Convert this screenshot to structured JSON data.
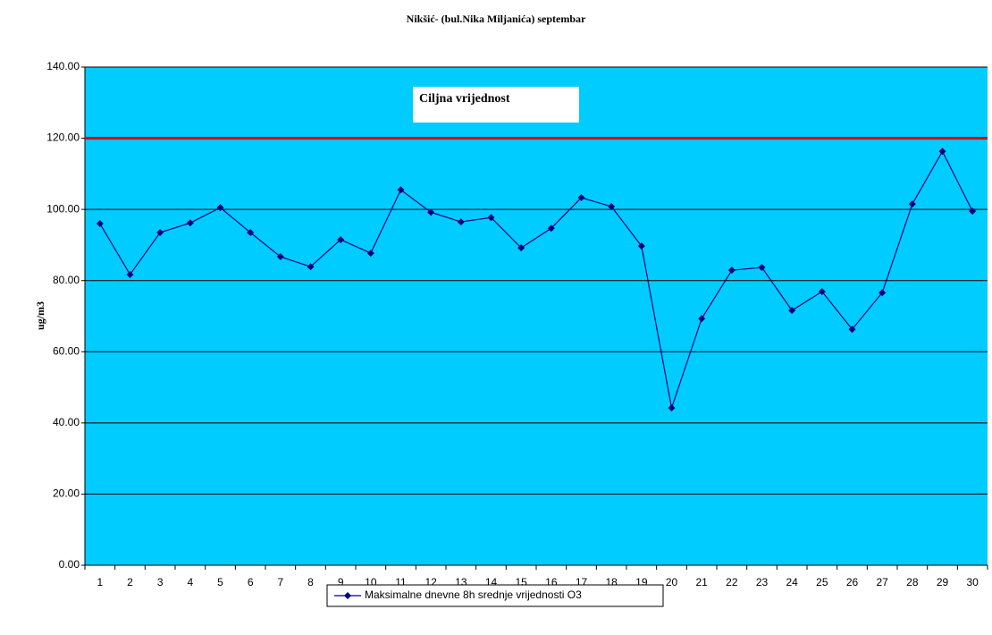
{
  "chart_data": {
    "type": "line",
    "title": "Nikšić- (bul.Nika Miljanića) septembar",
    "y_label": "ug/m3",
    "categories": [
      "1",
      "2",
      "3",
      "4",
      "5",
      "6",
      "7",
      "8",
      "9",
      "10",
      "11",
      "12",
      "13",
      "14",
      "15",
      "16",
      "17",
      "18",
      "19",
      "20",
      "21",
      "22",
      "23",
      "24",
      "25",
      "26",
      "27",
      "28",
      "29",
      "30"
    ],
    "series": [
      {
        "name": "Maksimalne dnevne 8h srednje vrijednosti O3",
        "color": "#000080",
        "values": [
          96.0,
          81.7,
          93.5,
          96.2,
          100.5,
          93.5,
          86.7,
          83.9,
          91.5,
          87.7,
          105.5,
          99.2,
          96.5,
          97.7,
          89.2,
          94.7,
          103.3,
          100.8,
          89.7,
          44.2,
          69.3,
          82.9,
          83.7,
          71.6,
          76.9,
          66.3,
          76.6,
          101.5,
          116.3,
          99.5
        ]
      }
    ],
    "target": {
      "label": "Ciljna vrijednost",
      "value": 120,
      "color": "#e00000"
    },
    "ylim": [
      0,
      140
    ],
    "yticks": [
      {
        "value": 0,
        "label": "0.00"
      },
      {
        "value": 20,
        "label": "20.00"
      },
      {
        "value": 40,
        "label": "40.00"
      },
      {
        "value": 60,
        "label": "60.00"
      },
      {
        "value": 80,
        "label": "80.00"
      },
      {
        "value": 100,
        "label": "100.00"
      },
      {
        "value": 120,
        "label": "120.00"
      },
      {
        "value": 140,
        "label": "140.00"
      }
    ],
    "grid": true,
    "background": "#00ccff",
    "legend": "bottom"
  }
}
